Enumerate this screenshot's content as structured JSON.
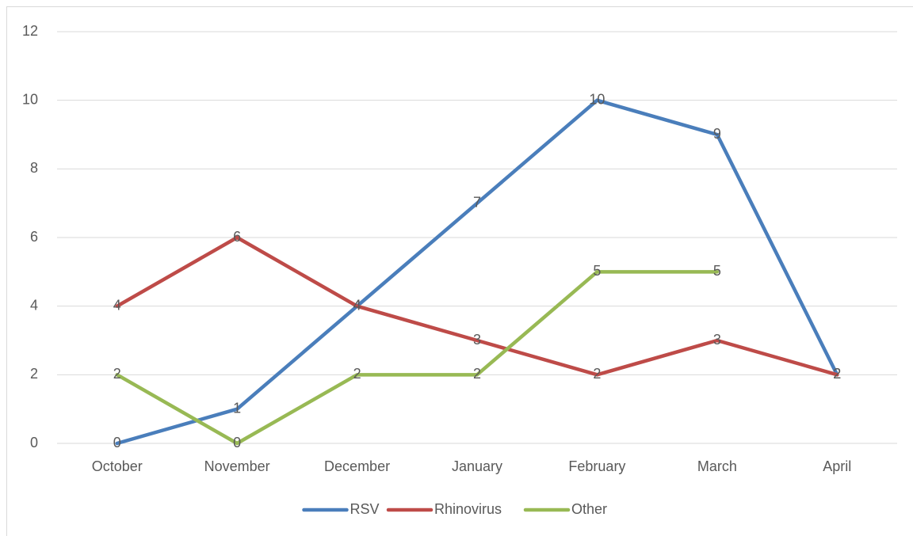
{
  "chart_data": {
    "type": "line",
    "categories": [
      "October",
      "November",
      "December",
      "January",
      "February",
      "March",
      "April"
    ],
    "series": [
      {
        "name": "RSV",
        "color": "#4a7ebb",
        "values": [
          0,
          1,
          4,
          7,
          10,
          9,
          2
        ]
      },
      {
        "name": "Rhinovirus",
        "color": "#be4b48",
        "values": [
          4,
          6,
          4,
          3,
          2,
          3,
          2
        ]
      },
      {
        "name": "Other",
        "color": "#98b954",
        "values": [
          2,
          0,
          2,
          2,
          5,
          5,
          null
        ]
      }
    ],
    "ylim": [
      0,
      12
    ],
    "yticks": [
      0,
      2,
      4,
      6,
      8,
      10,
      12
    ],
    "grid": true,
    "legend": "bottom"
  }
}
